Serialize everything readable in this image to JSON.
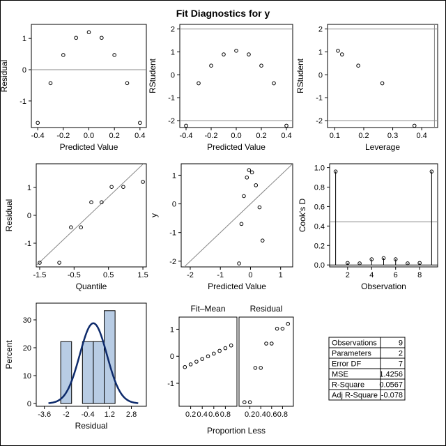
{
  "title": "Fit Diagnostics for y",
  "chart_data": [
    {
      "id": "resid_vs_pred",
      "type": "scatter",
      "xlabel": "Predicted Value",
      "ylabel": "Residual",
      "xlim": [
        -0.45,
        0.45
      ],
      "ylim": [
        -1.85,
        1.45
      ],
      "xticks": [
        -0.4,
        -0.2,
        0.0,
        0.2,
        0.4
      ],
      "xtick_labels": [
        "-0.4",
        "-0.2",
        "0.0",
        "0.2",
        "0.4"
      ],
      "yticks": [
        -1,
        0,
        1
      ],
      "ytick_labels": [
        "-1",
        "0",
        "1"
      ],
      "hlines": [
        0
      ],
      "x": [
        -0.4,
        -0.3,
        -0.2,
        -0.1,
        0.0,
        0.1,
        0.2,
        0.3,
        0.4
      ],
      "y": [
        -1.7,
        -0.43,
        0.47,
        1.02,
        1.2,
        1.02,
        0.47,
        -0.43,
        -1.7
      ]
    },
    {
      "id": "rstudent_vs_pred",
      "type": "scatter",
      "xlabel": "Predicted Value",
      "ylabel": "RStudent",
      "xlim": [
        -0.45,
        0.45
      ],
      "ylim": [
        -2.3,
        2.2
      ],
      "xticks": [
        -0.4,
        -0.2,
        0.0,
        0.2,
        0.4
      ],
      "xtick_labels": [
        "-0.4",
        "-0.2",
        "0.0",
        "0.2",
        "0.4"
      ],
      "yticks": [
        -2,
        -1,
        0,
        1,
        2
      ],
      "ytick_labels": [
        "-2",
        "-1",
        "0",
        "1",
        "2"
      ],
      "hlines": [
        -2,
        2
      ],
      "x": [
        -0.4,
        -0.3,
        -0.2,
        -0.1,
        0.0,
        0.1,
        0.2,
        0.3,
        0.4
      ],
      "y": [
        -2.22,
        -0.37,
        0.4,
        0.89,
        1.05,
        0.89,
        0.4,
        -0.37,
        -2.22
      ]
    },
    {
      "id": "rstudent_vs_leverage",
      "type": "scatter",
      "xlabel": "Leverage",
      "ylabel": "RStudent",
      "xlim": [
        0.075,
        0.455
      ],
      "ylim": [
        -2.3,
        2.2
      ],
      "xticks": [
        0.1,
        0.2,
        0.3,
        0.4
      ],
      "xtick_labels": [
        "0.1",
        "0.2",
        "0.3",
        "0.4"
      ],
      "yticks": [
        -2,
        -1,
        0,
        1,
        2
      ],
      "ytick_labels": [
        "-2",
        "-1",
        "0",
        "1",
        "2"
      ],
      "hlines": [
        -2,
        2
      ],
      "vlines": [
        0.444
      ],
      "x": [
        0.111,
        0.125,
        0.181,
        0.264,
        0.375
      ],
      "y": [
        1.05,
        0.89,
        0.4,
        -0.37,
        -2.22
      ]
    },
    {
      "id": "qq_plot",
      "type": "scatter",
      "xlabel": "Quantile",
      "ylabel": "Residual",
      "xlim": [
        -1.6,
        1.6
      ],
      "ylim": [
        -1.85,
        1.85
      ],
      "xticks": [
        -1.5,
        -0.5,
        0.5,
        1.5
      ],
      "xtick_labels": [
        "-1.5",
        "-0.5",
        "0.5",
        "1.5"
      ],
      "yticks": [
        -1,
        0,
        1
      ],
      "ytick_labels": [
        "-1",
        "0",
        "1"
      ],
      "refline": [
        [
          -1.6,
          -1.8
        ],
        [
          1.6,
          1.95
        ]
      ],
      "x": [
        -1.5,
        -0.93,
        -0.59,
        -0.3,
        0.0,
        0.3,
        0.59,
        0.93,
        1.5
      ],
      "y": [
        -1.7,
        -1.7,
        -0.43,
        -0.43,
        0.47,
        0.47,
        1.02,
        1.02,
        1.2
      ]
    },
    {
      "id": "y_vs_pred",
      "type": "scatter",
      "xlabel": "Predicted Value",
      "ylabel": "y",
      "xlim": [
        -2.3,
        1.4
      ],
      "ylim": [
        -2.2,
        1.4
      ],
      "xticks": [
        -2,
        -1,
        0,
        1
      ],
      "xtick_labels": [
        "-2",
        "-1",
        "0",
        "1"
      ],
      "yticks": [
        -2,
        -1,
        0,
        1
      ],
      "ytick_labels": [
        "-2",
        "-1",
        "0",
        "1"
      ],
      "refline": [
        [
          -2.3,
          -2.3
        ],
        [
          1.4,
          1.4
        ]
      ],
      "x": [
        -0.38,
        -0.3,
        -0.22,
        -0.12,
        -0.05,
        0.05,
        0.18,
        0.3,
        0.4
      ],
      "y": [
        -2.08,
        -0.7,
        0.27,
        0.92,
        1.18,
        1.1,
        0.65,
        -0.12,
        -1.28
      ]
    },
    {
      "id": "cooks_d",
      "type": "needle",
      "xlabel": "Observation",
      "ylabel": "Cook's D",
      "xlim": [
        0.5,
        9.5
      ],
      "ylim": [
        -0.02,
        1.04
      ],
      "xticks": [
        2,
        4,
        6,
        8
      ],
      "xtick_labels": [
        "2",
        "4",
        "6",
        "8"
      ],
      "yticks": [
        0.0,
        0.2,
        0.4,
        0.6,
        0.8,
        1.0
      ],
      "ytick_labels": [
        "0.0",
        "0.2",
        "0.4",
        "0.6",
        "0.8",
        "1.0"
      ],
      "hlines": [
        0.444
      ],
      "x": [
        1,
        2,
        3,
        4,
        5,
        6,
        7,
        8,
        9
      ],
      "y": [
        0.96,
        0.02,
        0.016,
        0.058,
        0.07,
        0.058,
        0.016,
        0.02,
        0.96
      ]
    },
    {
      "id": "resid_histogram",
      "type": "histogram",
      "xlabel": "Residual",
      "ylabel": "Percent",
      "xlim": [
        -4.2,
        3.9
      ],
      "ylim": [
        -1,
        36
      ],
      "xticks": [
        -3.6,
        -2.0,
        -0.4,
        1.2,
        2.8
      ],
      "xtick_labels": [
        "-3.6",
        "-2",
        "-0.4",
        "1.2",
        "2.8"
      ],
      "yticks": [
        0,
        10,
        20,
        30
      ],
      "ytick_labels": [
        "0",
        "10",
        "20",
        "30"
      ],
      "bins": [
        {
          "from": -2.4,
          "to": -1.6,
          "value": 22.2
        },
        {
          "from": -1.6,
          "to": -0.8,
          "value": 0
        },
        {
          "from": -0.8,
          "to": 0.0,
          "value": 22.2
        },
        {
          "from": 0.0,
          "to": 0.8,
          "value": 22.2
        },
        {
          "from": 0.8,
          "to": 1.6,
          "value": 33.3
        }
      ],
      "bar_color": "#b8cce4",
      "curve_color": "#0d2a6b",
      "curve": {
        "mean": 0.0,
        "sd": 1.0,
        "scale": 28.8
      }
    },
    {
      "id": "residual_fit_spread",
      "type": "scatter",
      "xlabel": "Proportion Less",
      "panel_titles": [
        "Fit–Mean",
        "Residual"
      ],
      "xlim": [
        0.0,
        1.0
      ],
      "ylim": [
        -1.85,
        1.45
      ],
      "xticks": [
        0.2,
        0.4,
        0.6,
        0.8
      ],
      "xtick_labels": [
        "0.2",
        "0.4",
        "0.6",
        "0.8"
      ],
      "yticks": [
        -1,
        0,
        1
      ],
      "ytick_labels": [
        "-1",
        "0",
        "1"
      ],
      "fit_mean": {
        "x": [
          0.1,
          0.2,
          0.3,
          0.4,
          0.5,
          0.6,
          0.7,
          0.8,
          0.9
        ],
        "y": [
          -0.4,
          -0.3,
          -0.2,
          -0.1,
          0.0,
          0.1,
          0.2,
          0.3,
          0.4
        ]
      },
      "residual": {
        "x": [
          0.1,
          0.2,
          0.3,
          0.4,
          0.5,
          0.6,
          0.7,
          0.8,
          0.9
        ],
        "y": [
          -1.7,
          -1.7,
          -0.43,
          -0.43,
          0.47,
          0.47,
          1.02,
          1.02,
          1.2
        ]
      }
    }
  ],
  "fit_stats": [
    {
      "label": "Observations",
      "value": "9"
    },
    {
      "label": "Parameters",
      "value": "2"
    },
    {
      "label": "Error DF",
      "value": "7"
    },
    {
      "label": "MSE",
      "value": "1.4256"
    },
    {
      "label": "R-Square",
      "value": "0.0567"
    },
    {
      "label": "Adj R-Square",
      "value": "-0.078"
    }
  ]
}
